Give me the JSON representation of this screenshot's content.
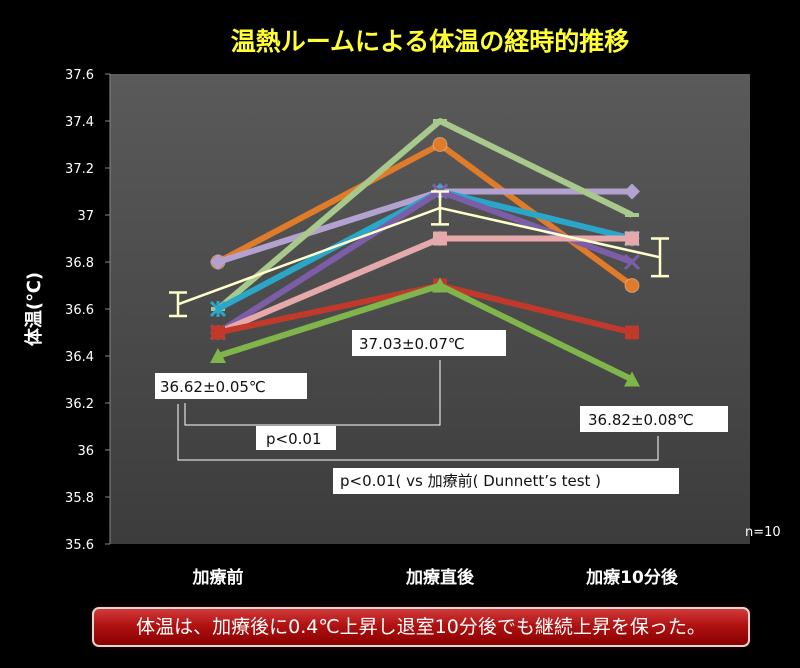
{
  "chart_data": {
    "type": "line",
    "title": "温熱ルームによる体温の経時的推移",
    "ylabel": "体温(℃)",
    "xlabel": "",
    "categories": [
      "加療前",
      "加療直後",
      "加療10分後"
    ],
    "ylim": [
      35.6,
      37.6
    ],
    "yticks": [
      "35.6",
      "35.8",
      "36",
      "36.2",
      "36.4",
      "36.6",
      "36.8",
      "37",
      "37.2",
      "37.4",
      "37.6"
    ],
    "grid": false,
    "series": [
      {
        "color": "#e07b2a",
        "marker": "circle",
        "values": [
          36.8,
          37.3,
          36.7
        ]
      },
      {
        "color": "#b3a2cf",
        "marker": "diamond",
        "values": [
          36.8,
          37.1,
          37.1
        ]
      },
      {
        "color": "#a8c98c",
        "marker": "dash",
        "values": [
          36.6,
          37.4,
          37.0
        ]
      },
      {
        "color": "#2aa6c9",
        "marker": "star",
        "values": [
          36.6,
          37.1,
          36.9
        ]
      },
      {
        "color": "#4f81bd",
        "marker": "diamond",
        "values": [
          36.5,
          36.9,
          36.9
        ]
      },
      {
        "color": "#7b5ea7",
        "marker": "x",
        "values": [
          36.5,
          37.1,
          36.8
        ]
      },
      {
        "color": "#e6a8a8",
        "marker": "square",
        "values": [
          36.5,
          36.9,
          36.9
        ]
      },
      {
        "color": "#c0392b",
        "marker": "square",
        "values": [
          36.5,
          36.7,
          36.5
        ]
      },
      {
        "color": "#7fb54a",
        "marker": "triangle",
        "values": [
          36.4,
          36.7,
          36.3
        ]
      }
    ],
    "mean": {
      "color": "#ffffcc",
      "values": [
        36.62,
        37.03,
        36.82
      ],
      "err": [
        0.05,
        0.07,
        0.08
      ]
    },
    "annotations": {
      "before": "36.62±0.05℃",
      "after": "37.03±0.07℃",
      "ten": "36.82±0.08℃",
      "p1": "p<0.01",
      "p2": "p<0.01( vs 加療前( Dunnett’s test )"
    },
    "n_label": "n=10"
  },
  "footer": {
    "text": "体温は、加療後に0.4℃上昇し退室10分後でも継続上昇を保った。",
    "color": "#b01212"
  }
}
